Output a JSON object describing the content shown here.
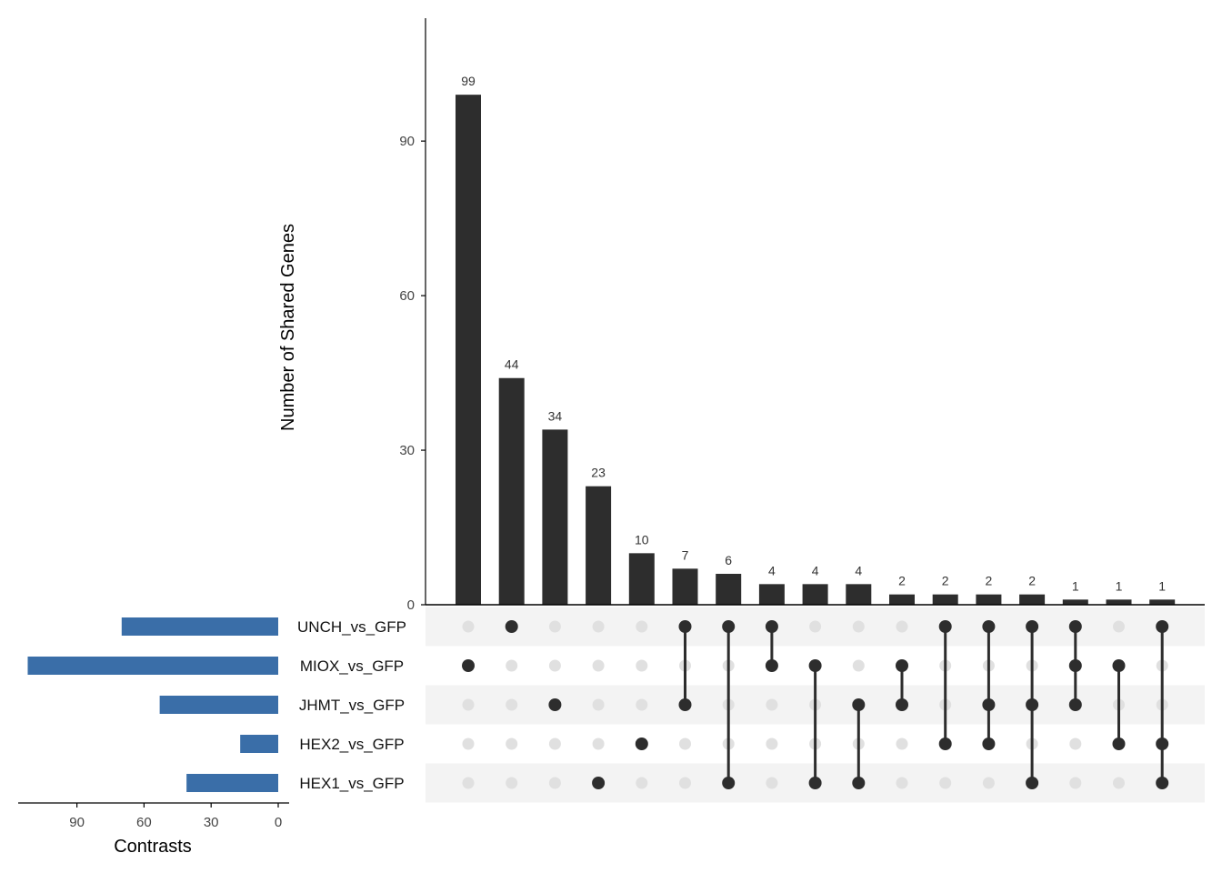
{
  "chart_data": [
    {
      "type": "bar",
      "role": "intersection-size",
      "ylabel": "Number of Shared Genes",
      "ylim": [
        0,
        115
      ],
      "yticks": [
        0,
        30,
        60,
        90
      ],
      "tick_labels": [
        "0",
        "30",
        "60",
        "90"
      ],
      "values": [
        99,
        44,
        34,
        23,
        10,
        7,
        6,
        4,
        4,
        4,
        2,
        2,
        2,
        2,
        1,
        1,
        1
      ],
      "labels": [
        "99",
        "44",
        "34",
        "23",
        "10",
        "7",
        "6",
        "4",
        "4",
        "4",
        "2",
        "2",
        "2",
        "2",
        "1",
        "1",
        "1"
      ],
      "bar_color": "#2d2d2d"
    },
    {
      "type": "bar",
      "orientation": "horizontal-reversed",
      "role": "set-size",
      "xlabel": "Contrasts",
      "xlim": [
        0,
        115
      ],
      "xticks": [
        90,
        60,
        30,
        0
      ],
      "tick_labels": [
        "90",
        "60",
        "30",
        "0"
      ],
      "sets": [
        "UNCH_vs_GFP",
        "MIOX_vs_GFP",
        "JHMT_vs_GFP",
        "HEX2_vs_GFP",
        "HEX1_vs_GFP"
      ],
      "values": [
        70,
        112,
        53,
        17,
        41
      ],
      "bar_color": "#3a6ea8"
    },
    {
      "type": "matrix",
      "role": "intersection-membership",
      "memberships": [
        [
          1
        ],
        [
          0
        ],
        [
          2
        ],
        [
          4
        ],
        [
          3
        ],
        [
          0,
          2
        ],
        [
          0,
          4
        ],
        [
          0,
          1
        ],
        [
          1,
          4
        ],
        [
          2,
          4
        ],
        [
          1,
          2
        ],
        [
          0,
          3
        ],
        [
          0,
          2,
          3
        ],
        [
          0,
          2,
          4
        ],
        [
          0,
          1,
          2
        ],
        [
          1,
          3
        ],
        [
          0,
          3,
          4
        ]
      ],
      "active_color": "#2d2d2d",
      "inactive_color": "#e0e0e0",
      "stripe_color": "#f3f3f3"
    }
  ]
}
